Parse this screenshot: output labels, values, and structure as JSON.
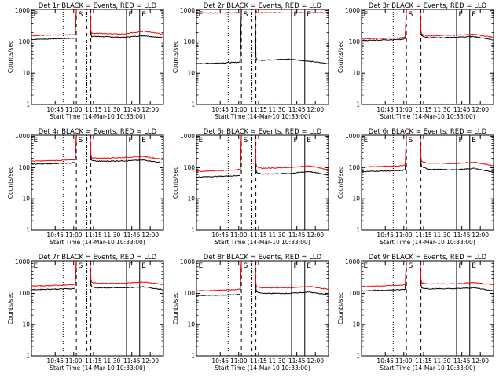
{
  "chart_data": [
    {
      "type": "line",
      "title": "Det 1r BLACK = Events, RED = LLD",
      "xlabel": "Start Time (14-Mar-10 10:33:00)",
      "ylabel": "Counts/sec",
      "yscale": "log",
      "ylim": [
        1,
        1100
      ],
      "x_ticks": [
        "10:45",
        "11:00",
        "11:15",
        "11:30",
        "11:45",
        "12:00"
      ],
      "markers": [
        "E",
        "S",
        "F",
        "E"
      ],
      "series": [
        {
          "color": "#000000",
          "x": [
            0.0,
            0.3,
            0.45,
            0.5,
            0.7,
            0.85,
            1.0
          ],
          "y": [
            120,
            130,
            150,
            150,
            140,
            160,
            135
          ]
        },
        {
          "color": "#ff0000",
          "x": [
            0.0,
            0.3,
            0.45,
            0.5,
            0.7,
            0.85,
            1.0
          ],
          "y": [
            160,
            170,
            190,
            190,
            180,
            220,
            180
          ]
        }
      ]
    },
    {
      "type": "line",
      "title": "Det 2r BLACK = Events, RED = LLD",
      "xlabel": "Start Time (14-Mar-10 10:33:00)",
      "ylabel": "Counts/sec",
      "yscale": "log",
      "ylim": [
        1,
        1100
      ],
      "x_ticks": [
        "10:45",
        "11:00",
        "11:15",
        "11:30",
        "11:45",
        "12:00"
      ],
      "markers": [
        "E",
        "S",
        "F",
        "E"
      ],
      "series": [
        {
          "color": "#000000",
          "x": [
            0.0,
            0.3,
            0.45,
            0.5,
            0.7,
            0.85,
            1.0
          ],
          "y": [
            20,
            22,
            26,
            26,
            28,
            24,
            20
          ]
        },
        {
          "color": "#ff0000",
          "x": [
            0.0,
            0.3,
            0.45,
            0.5,
            0.7,
            0.85,
            1.0
          ],
          "y": [
            850,
            860,
            860,
            860,
            860,
            860,
            860
          ]
        }
      ]
    },
    {
      "type": "line",
      "title": "Det 3r BLACK = Events, RED = LLD",
      "xlabel": "Start Time (14-Mar-10 10:33:00)",
      "ylabel": "Counts/sec",
      "yscale": "log",
      "ylim": [
        1,
        1100
      ],
      "x_ticks": [
        "10:45",
        "11:00",
        "11:15",
        "11:30",
        "11:45",
        "12:00"
      ],
      "markers": [
        "E",
        "S",
        "F",
        "E"
      ],
      "series": [
        {
          "color": "#000000",
          "x": [
            0.0,
            0.3,
            0.45,
            0.5,
            0.7,
            0.85,
            1.0
          ],
          "y": [
            110,
            120,
            160,
            135,
            140,
            150,
            115
          ]
        },
        {
          "color": "#ff0000",
          "x": [
            0.0,
            0.3,
            0.45,
            0.5,
            0.7,
            0.85,
            1.0
          ],
          "y": [
            125,
            135,
            180,
            155,
            165,
            175,
            140
          ]
        }
      ]
    },
    {
      "type": "line",
      "title": "Det 4r BLACK = Events, RED = LLD",
      "xlabel": "Start Time (14-Mar-10 10:33:00)",
      "ylabel": "Counts/sec",
      "yscale": "log",
      "ylim": [
        1,
        1100
      ],
      "x_ticks": [
        "10:45",
        "11:00",
        "11:15",
        "11:30",
        "11:45",
        "12:00"
      ],
      "markers": [
        "E",
        "S",
        "F",
        "E"
      ],
      "series": [
        {
          "color": "#000000",
          "x": [
            0.0,
            0.3,
            0.45,
            0.5,
            0.7,
            0.85,
            1.0
          ],
          "y": [
            130,
            140,
            170,
            160,
            165,
            175,
            140
          ]
        },
        {
          "color": "#ff0000",
          "x": [
            0.0,
            0.3,
            0.45,
            0.5,
            0.7,
            0.85,
            1.0
          ],
          "y": [
            160,
            175,
            210,
            200,
            210,
            230,
            180
          ]
        }
      ]
    },
    {
      "type": "line",
      "title": "Det 5r BLACK = Events, RED = LLD",
      "xlabel": "Start Time (14-Mar-10 10:33:00)",
      "ylabel": "Counts/sec",
      "yscale": "log",
      "ylim": [
        1,
        1100
      ],
      "x_ticks": [
        "10:45",
        "11:00",
        "11:15",
        "11:30",
        "11:45",
        "12:00"
      ],
      "markers": [
        "E",
        "S",
        "F",
        "E"
      ],
      "series": [
        {
          "color": "#000000",
          "x": [
            0.0,
            0.3,
            0.45,
            0.5,
            0.7,
            0.85,
            1.0
          ],
          "y": [
            50,
            55,
            70,
            62,
            65,
            75,
            58
          ]
        },
        {
          "color": "#ff0000",
          "x": [
            0.0,
            0.3,
            0.45,
            0.5,
            0.7,
            0.85,
            1.0
          ],
          "y": [
            75,
            85,
            110,
            95,
            100,
            115,
            85
          ]
        }
      ]
    },
    {
      "type": "line",
      "title": "Det 6r BLACK = Events, RED = LLD",
      "xlabel": "Start Time (14-Mar-10 10:33:00)",
      "ylabel": "Counts/sec",
      "yscale": "log",
      "ylim": [
        1,
        1100
      ],
      "x_ticks": [
        "10:45",
        "11:00",
        "11:15",
        "11:30",
        "11:45",
        "12:00"
      ],
      "markers": [
        "E",
        "S",
        "F",
        "E"
      ],
      "series": [
        {
          "color": "#000000",
          "x": [
            0.0,
            0.3,
            0.45,
            0.5,
            0.7,
            0.85,
            1.0
          ],
          "y": [
            75,
            80,
            110,
            90,
            85,
            95,
            70
          ]
        },
        {
          "color": "#ff0000",
          "x": [
            0.0,
            0.3,
            0.45,
            0.5,
            0.7,
            0.85,
            1.0
          ],
          "y": [
            105,
            115,
            160,
            140,
            135,
            150,
            115
          ]
        }
      ]
    },
    {
      "type": "line",
      "title": "Det 7r BLACK = Events, RED = LLD",
      "xlabel": "Start Time (14-Mar-10 10:33:00)",
      "ylabel": "Counts/sec",
      "yscale": "log",
      "ylim": [
        1,
        1100
      ],
      "x_ticks": [
        "10:45",
        "11:00",
        "11:15",
        "11:30",
        "11:45",
        "12:00"
      ],
      "markers": [
        "E",
        "S",
        "F",
        "E"
      ],
      "series": [
        {
          "color": "#000000",
          "x": [
            0.0,
            0.3,
            0.45,
            0.5,
            0.7,
            0.85,
            1.0
          ],
          "y": [
            130,
            140,
            160,
            150,
            150,
            160,
            130
          ]
        },
        {
          "color": "#ff0000",
          "x": [
            0.0,
            0.3,
            0.45,
            0.5,
            0.7,
            0.85,
            1.0
          ],
          "y": [
            170,
            185,
            230,
            210,
            210,
            230,
            190
          ]
        }
      ]
    },
    {
      "type": "line",
      "title": "Det 8r BLACK = Events, RED = LLD",
      "xlabel": "Start Time (14-Mar-10 10:33:00)",
      "ylabel": "Counts/sec",
      "yscale": "log",
      "ylim": [
        1,
        1100
      ],
      "x_ticks": [
        "10:45",
        "11:00",
        "11:15",
        "11:30",
        "11:45",
        "12:00"
      ],
      "markers": [
        "E",
        "S",
        "F",
        "E"
      ],
      "series": [
        {
          "color": "#000000",
          "x": [
            0.0,
            0.3,
            0.45,
            0.5,
            0.7,
            0.85,
            1.0
          ],
          "y": [
            85,
            90,
            110,
            100,
            100,
            110,
            90
          ]
        },
        {
          "color": "#ff0000",
          "x": [
            0.0,
            0.3,
            0.45,
            0.5,
            0.7,
            0.85,
            1.0
          ],
          "y": [
            120,
            130,
            160,
            150,
            150,
            165,
            135
          ]
        }
      ]
    },
    {
      "type": "line",
      "title": "Det 9r BLACK = Events, RED = LLD",
      "xlabel": "Start Time (14-Mar-10 10:33:00)",
      "ylabel": "Counts/sec",
      "yscale": "log",
      "ylim": [
        1,
        1100
      ],
      "x_ticks": [
        "10:45",
        "11:00",
        "11:15",
        "11:30",
        "11:45",
        "12:00"
      ],
      "markers": [
        "E",
        "S",
        "F",
        "E"
      ],
      "series": [
        {
          "color": "#000000",
          "x": [
            0.0,
            0.3,
            0.45,
            0.5,
            0.7,
            0.85,
            1.0
          ],
          "y": [
            120,
            130,
            150,
            140,
            140,
            150,
            120
          ]
        },
        {
          "color": "#ff0000",
          "x": [
            0.0,
            0.3,
            0.45,
            0.5,
            0.7,
            0.85,
            1.0
          ],
          "y": [
            165,
            180,
            220,
            200,
            200,
            220,
            185
          ]
        }
      ]
    }
  ]
}
